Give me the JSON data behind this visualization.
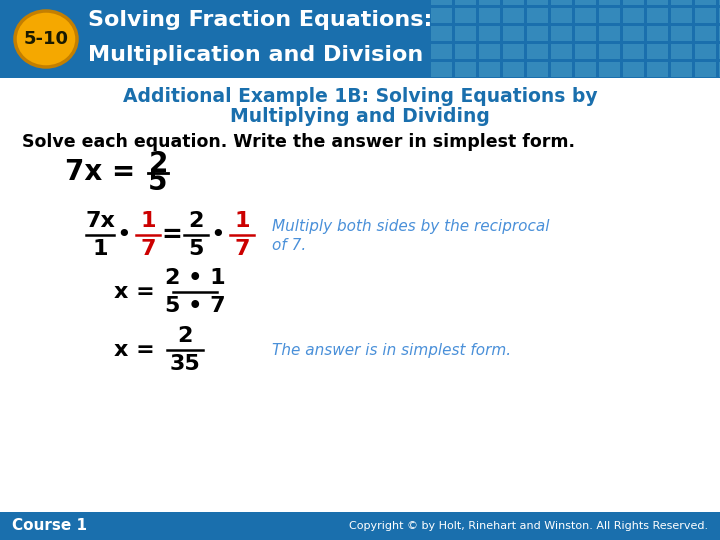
{
  "header_bg_color": "#1a6fad",
  "header_text_line1": "Solving Fraction Equations:",
  "header_text_line2": "Multiplication and Division",
  "badge_text": "5-10",
  "badge_bg": "#f5a800",
  "badge_outline": "#c47f00",
  "subtitle_line1": "Additional Example 1B: Solving Equations by",
  "subtitle_line2": "Multiplying and Dividing",
  "subtitle_color": "#1a6fad",
  "instruction_text": "Solve each equation. Write the answer in simplest form.",
  "instruction_color": "#000000",
  "footer_bg_color": "#1a6fad",
  "footer_left": "Course 1",
  "footer_right": "Copyright © by Holt, Rinehart and Winston. All Rights Reserved.",
  "footer_text_color": "#ffffff",
  "body_bg_color": "#ffffff",
  "black": "#000000",
  "red": "#cc0000",
  "blue_italic": "#4a90d9",
  "grid_color": "#4a9fc8"
}
